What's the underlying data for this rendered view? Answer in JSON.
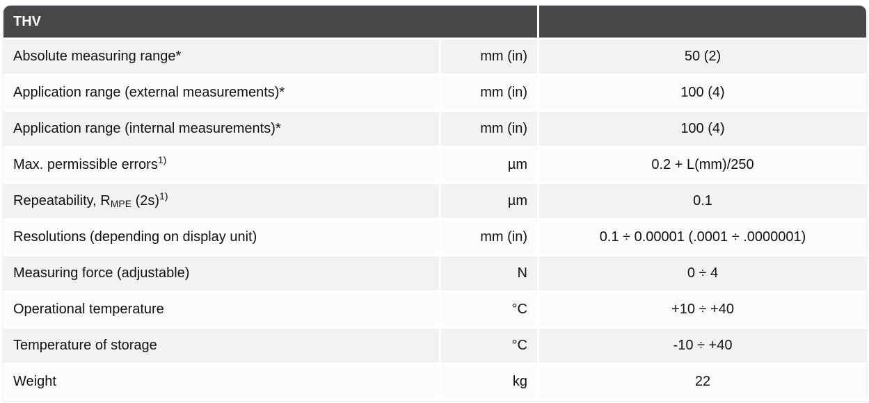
{
  "header": {
    "title": "THV",
    "right": ""
  },
  "rows": [
    {
      "label": "Absolute measuring range*",
      "unit": "mm (in)",
      "value": "50 (2)"
    },
    {
      "label": "Application range (external measurements)*",
      "unit": "mm (in)",
      "value": "100 (4)"
    },
    {
      "label": "Application range (internal measurements)*",
      "unit": "mm (in)",
      "value": "100 (4)"
    },
    {
      "label": "Max. permissible errors",
      "sup": "1)",
      "unit": "µm",
      "value": "0.2 + L(mm)/250"
    },
    {
      "label": "Repeatability, R",
      "sub": "MPE",
      "label_after": " (2s)",
      "sup": "1)",
      "unit": "µm",
      "value": "0.1"
    },
    {
      "label": "Resolutions (depending on display unit)",
      "unit": "mm (in)",
      "value": "0.1 ÷ 0.00001 (.0001 ÷ .0000001)"
    },
    {
      "label": "Measuring force (adjustable)",
      "unit": "N",
      "value": "0 ÷ 4"
    },
    {
      "label": "Operational temperature",
      "unit": "°C",
      "value": "+10 ÷ +40"
    },
    {
      "label": "Temperature of storage",
      "unit": "°C",
      "value": "-10 ÷ +40"
    },
    {
      "label": "Weight",
      "unit": "kg",
      "value": "22"
    }
  ]
}
